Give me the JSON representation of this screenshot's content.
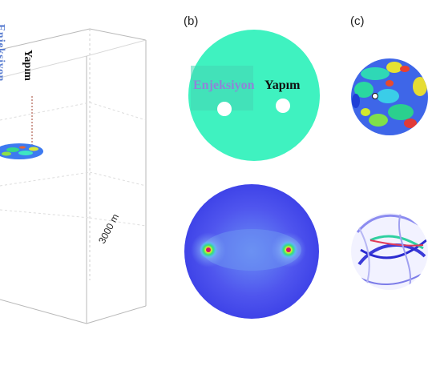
{
  "panels": {
    "b_label": "(b)",
    "c_label": "(c)"
  },
  "box": {
    "depth_label": "3000 m",
    "injector_label": "Enjeksiyon",
    "producer_label": "Yapım"
  },
  "disk_top": {
    "injector_label": "Enjeksiyon",
    "producer_label": "Yapım"
  },
  "colors": {
    "disk_fill": "#3ff2c0",
    "pressure_bg": "#4a4af0",
    "injector_text": "#8f84d8",
    "box_line": "#b9b9b9"
  }
}
